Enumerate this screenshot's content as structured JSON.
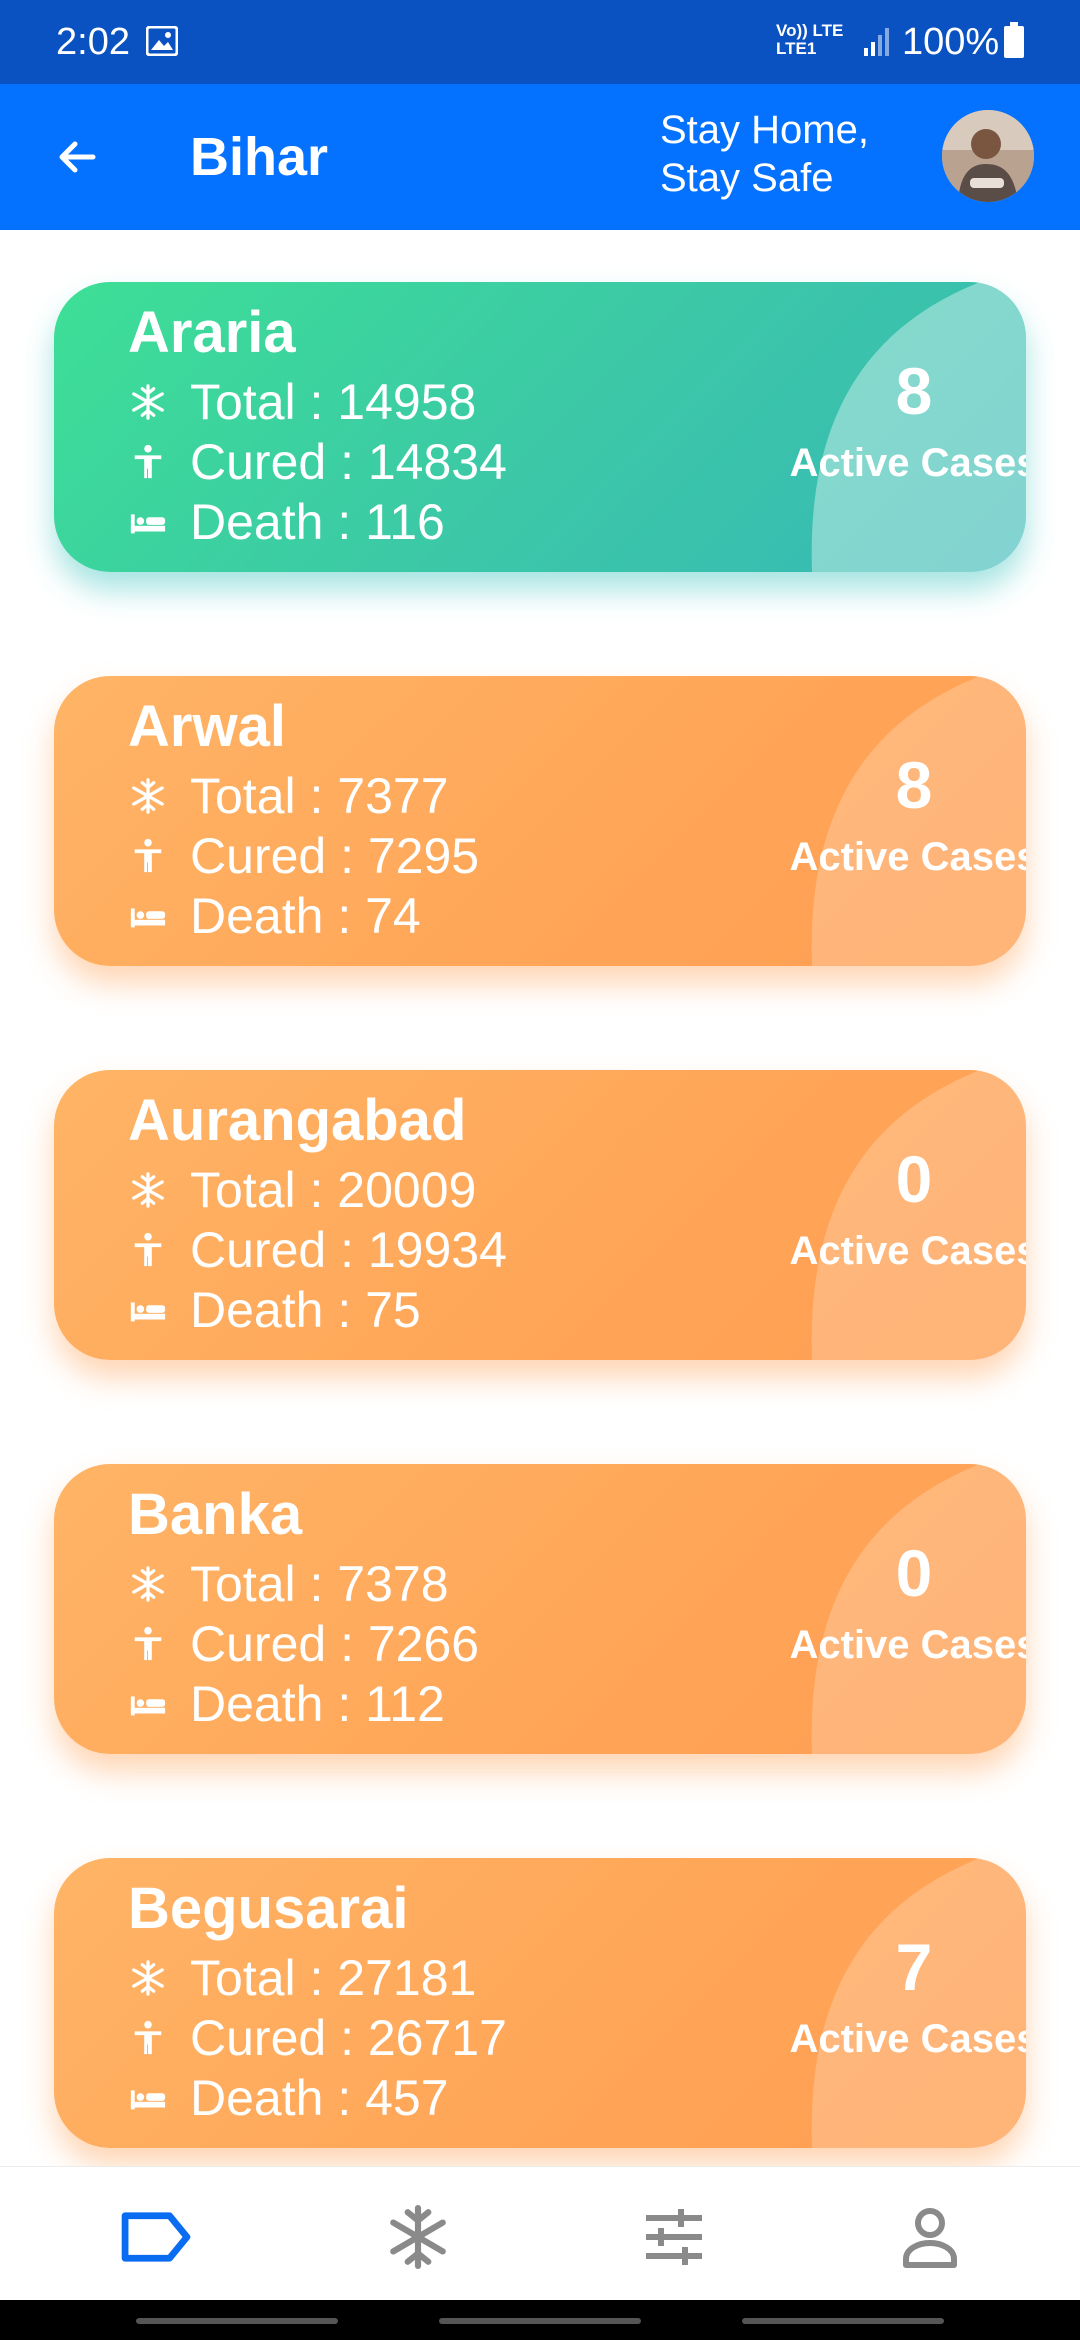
{
  "status_bar": {
    "time": "2:02",
    "network": "Vo)) LTE LTE1",
    "battery": "100%",
    "icons": [
      "image-icon",
      "signal-icon",
      "battery-icon"
    ]
  },
  "app_bar": {
    "title": "Bihar",
    "slogan_line1": "Stay Home,",
    "slogan_line2": "Stay Safe",
    "back_icon": "arrow-left-icon",
    "color": "#0572ff"
  },
  "districts": [
    {
      "name": "Araria",
      "total": "Total : 14958",
      "cured": "Cured : 14834",
      "death": "Death : 116",
      "active": "8",
      "active_label": "Active Cases",
      "theme": "green"
    },
    {
      "name": "Arwal",
      "total": "Total : 7377",
      "cured": "Cured : 7295",
      "death": "Death : 74",
      "active": "8",
      "active_label": "Active Cases",
      "theme": "orange"
    },
    {
      "name": "Aurangabad",
      "total": "Total : 20009",
      "cured": "Cured : 19934",
      "death": "Death : 75",
      "active": "0",
      "active_label": "Active Cases",
      "theme": "orange"
    },
    {
      "name": "Banka",
      "total": "Total : 7378",
      "cured": "Cured : 7266",
      "death": "Death : 112",
      "active": "0",
      "active_label": "Active Cases",
      "theme": "orange"
    },
    {
      "name": "Begusarai",
      "total": "Total : 27181",
      "cured": "Cured : 26717",
      "death": "Death : 457",
      "active": "7",
      "active_label": "Active Cases",
      "theme": "orange"
    }
  ],
  "colors": {
    "green_card": "#3ddf96",
    "orange_card": "#ffa557",
    "nav_active": "#0a6cf0",
    "nav_inactive": "#8a8a8a"
  },
  "bottom_nav": {
    "items": [
      {
        "icon": "label-icon",
        "active": true
      },
      {
        "icon": "snowflake-icon",
        "active": false
      },
      {
        "icon": "sliders-icon",
        "active": false
      },
      {
        "icon": "person-icon",
        "active": false
      }
    ]
  }
}
